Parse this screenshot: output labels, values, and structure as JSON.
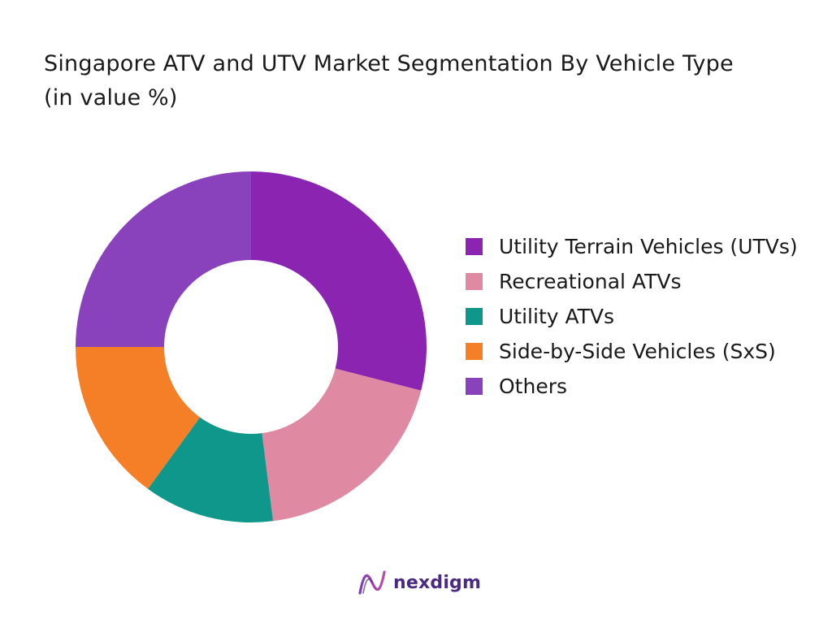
{
  "title": "Singapore ATV and UTV Market Segmentation By Vehicle Type (in value %)",
  "chart_data": {
    "type": "pie",
    "donut": true,
    "categories": [
      "Utility Terrain Vehicles (UTVs)",
      "Recreational ATVs",
      "Utility ATVs",
      "Side-by-Side Vehicles (SxS)",
      "Others"
    ],
    "values": [
      29,
      19,
      12,
      15,
      25
    ],
    "colors": [
      "#8b24b0",
      "#df89a3",
      "#0e978a",
      "#f47f26",
      "#8a41bc"
    ],
    "legend_position": "right"
  },
  "legend": [
    {
      "label": "Utility Terrain Vehicles (UTVs)",
      "color": "#8b24b0"
    },
    {
      "label": "Recreational ATVs",
      "color": "#df89a3"
    },
    {
      "label": "Utility ATVs",
      "color": "#0e978a"
    },
    {
      "label": "Side-by-Side Vehicles (SxS)",
      "color": "#f47f26"
    },
    {
      "label": "Others",
      "color": "#8a41bc"
    }
  ],
  "brand": {
    "name": "nexdigm",
    "logo_icon": "nexdigm-logo-icon"
  }
}
